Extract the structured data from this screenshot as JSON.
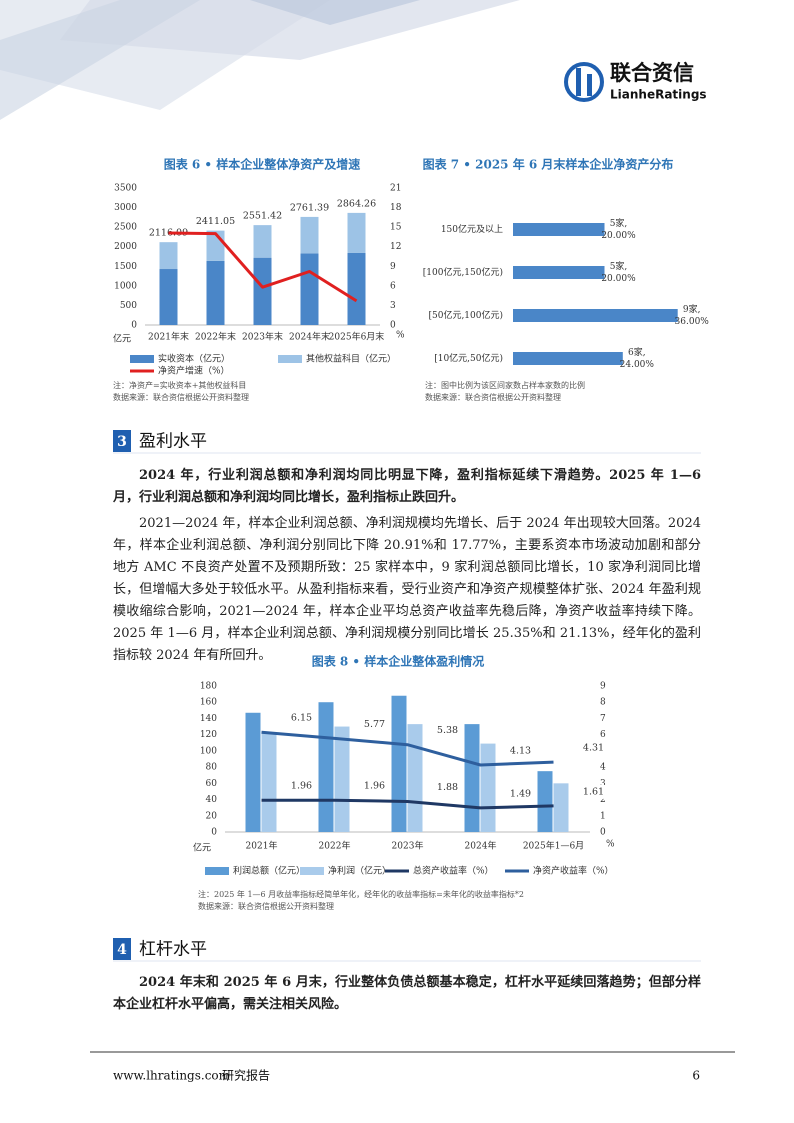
{
  "header": {
    "logo_cn": "联合资信",
    "logo_en": "LianheRatings"
  },
  "chart_data": [
    {
      "type": "bar",
      "stacked": true,
      "title": "图表 6 • 样本企业整体净资产及增速",
      "categories": [
        "2021年末",
        "2022年末",
        "2023年末",
        "2024年末",
        "2025年6月末"
      ],
      "series": [
        {
          "name": "实收资本（亿元）",
          "color": "#4a86c8",
          "values": [
            1430,
            1640,
            1720,
            1830,
            1840
          ]
        },
        {
          "name": "其他权益科目（亿元）",
          "color": "#9dc3e6",
          "values": [
            686.09,
            771.05,
            831.42,
            931.39,
            1024.26
          ]
        },
        {
          "name": "净资产增速（%）",
          "type": "line",
          "axis": "y2",
          "color": "#e02020",
          "values": [
            14.1,
            14.0,
            5.8,
            8.2,
            3.7
          ]
        }
      ],
      "total_labels": [
        "2116.09",
        "2411.05",
        "2551.42",
        "2761.39",
        "2864.26"
      ],
      "ylim": [
        0,
        3500
      ],
      "yticks": [
        0,
        500,
        1000,
        1500,
        2000,
        2500,
        3000,
        3500
      ],
      "y2lim": [
        0,
        21
      ],
      "y2ticks": [
        0,
        3,
        6,
        9,
        12,
        15,
        18,
        21
      ],
      "y_unit": "亿元",
      "y2_unit": "%",
      "notes": [
        "注：净资产=实收资本+其他权益科目",
        "数据来源：联合资信根据公开资料整理"
      ]
    },
    {
      "type": "barh",
      "title": "图表 7 • 2025 年 6 月末样本企业净资产分布",
      "categories": [
        "150亿元及以上",
        "[100亿元,150亿元)",
        "[50亿元,100亿元)",
        "[10亿元,50亿元)"
      ],
      "values": [
        5,
        5,
        9,
        6
      ],
      "value_labels": [
        "5家,",
        "5家,",
        "9家,",
        "6家,"
      ],
      "share_labels": [
        "20.00%",
        "20.00%",
        "36.00%",
        "24.00%"
      ],
      "color": "#4a86c8",
      "notes": [
        "注：图中比例为该区间家数占样本家数的比例",
        "数据来源：联合资信根据公开资料整理"
      ]
    },
    {
      "type": "bar",
      "stacked": false,
      "title": "图表 8 • 样本企业整体盈利情况",
      "categories": [
        "2021年",
        "2022年",
        "2023年",
        "2024年",
        "2025年1—6月"
      ],
      "series": [
        {
          "name": "利润总额（亿元）",
          "color": "#5b9bd5",
          "values": [
            147,
            160,
            168,
            133,
            75
          ]
        },
        {
          "name": "净利润（亿元）",
          "color": "#a9cbeb",
          "values": [
            122,
            130,
            133,
            109,
            60
          ]
        },
        {
          "name": "总资产收益率（%）",
          "type": "line",
          "axis": "y2",
          "color": "#1f3864",
          "values": [
            1.96,
            1.96,
            1.88,
            1.49,
            1.61
          ]
        },
        {
          "name": "净资产收益率（%）",
          "type": "line",
          "axis": "y2",
          "color": "#2e5f9e",
          "values": [
            6.15,
            5.77,
            5.38,
            4.13,
            4.31
          ]
        }
      ],
      "line_labels": true,
      "ylim": [
        0,
        180
      ],
      "yticks": [
        0,
        20,
        40,
        60,
        80,
        100,
        120,
        140,
        160,
        180
      ],
      "y2lim": [
        0,
        9
      ],
      "y2ticks": [
        0,
        1,
        2,
        3,
        4,
        5,
        6,
        7,
        8,
        9
      ],
      "y_unit": "亿元",
      "y2_unit": "%",
      "notes": [
        "注：2025 年 1—6 月收益率指标经简单年化，经年化的收益率指标=未年化的收益率指标*2",
        "数据来源：联合资信根据公开资料整理"
      ]
    }
  ],
  "sections": [
    {
      "number": "3",
      "title": "盈利水平",
      "lead": "2024 年，行业利润总额和净利润均同比明显下降，盈利指标延续下滑趋势。2025 年 1—6 月，行业利润总额和净利润均同比增长，盈利指标止跌回升。",
      "body": "2021—2024 年，样本企业利润总额、净利润规模均先增长、后于 2024 年出现较大回落。2024 年，样本企业利润总额、净利润分别同比下降 20.91%和 17.77%，主要系资本市场波动加剧和部分地方 AMC 不良资产处置不及预期所致：25 家样本中，9 家利润总额同比增长，10 家净利润同比增长，但增幅大多处于较低水平。从盈利指标来看，受行业资产和净资产规模整体扩张、2024 年盈利规模收缩综合影响，2021—2024 年，样本企业平均总资产收益率先稳后降，净资产收益率持续下降。2025 年 1—6 月，样本企业利润总额、净利润规模分别同比增长 25.35%和 21.13%，经年化的盈利指标较 2024 年有所回升。"
    },
    {
      "number": "4",
      "title": "杠杆水平",
      "lead": "2024 年末和 2025 年 6 月末，行业整体负债总额基本稳定，杠杆水平延续回落趋势；但部分样本企业杠杆水平偏高，需关注相关风险。"
    }
  ],
  "footer": {
    "url": "www.lhratings.com",
    "label": "研究报告",
    "page": "6"
  }
}
